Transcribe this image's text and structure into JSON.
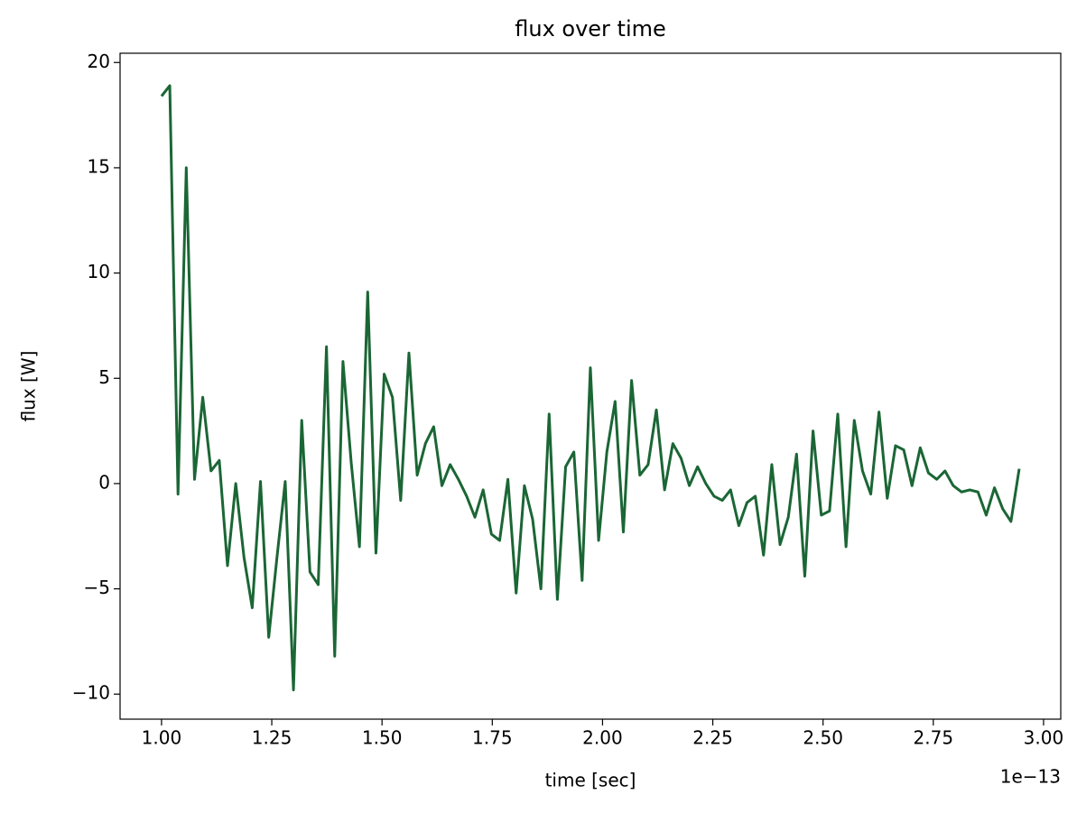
{
  "chart_data": {
    "type": "line",
    "title": "flux over time",
    "x_label": "time [sec]",
    "y_label": "flux [W]",
    "x_offset_label": "1e−13",
    "x": [
      1.0,
      1.0187,
      1.0374,
      1.0561,
      1.0748,
      1.0935,
      1.1122,
      1.1309,
      1.1496,
      1.1683,
      1.187,
      1.2057,
      1.2244,
      1.2431,
      1.2618,
      1.2805,
      1.2992,
      1.3179,
      1.3366,
      1.3553,
      1.374,
      1.3927,
      1.4114,
      1.4301,
      1.4488,
      1.4675,
      1.4862,
      1.5049,
      1.5236,
      1.5423,
      1.561,
      1.5797,
      1.5984,
      1.6171,
      1.6358,
      1.6545,
      1.6732,
      1.6919,
      1.7106,
      1.7293,
      1.748,
      1.7667,
      1.7854,
      1.8041,
      1.8228,
      1.8415,
      1.8602,
      1.8789,
      1.8976,
      1.9163,
      1.935,
      1.9537,
      1.9724,
      1.9911,
      2.0098,
      2.0285,
      2.0472,
      2.0659,
      2.0846,
      2.1033,
      2.122,
      2.1407,
      2.1594,
      2.1781,
      2.1968,
      2.2155,
      2.2342,
      2.2529,
      2.2716,
      2.2903,
      2.309,
      2.3277,
      2.3464,
      2.3651,
      2.3838,
      2.4025,
      2.4212,
      2.4399,
      2.4586,
      2.4773,
      2.496,
      2.5147,
      2.5334,
      2.5521,
      2.5708,
      2.5895,
      2.6082,
      2.6269,
      2.6456,
      2.6643,
      2.683,
      2.7017,
      2.7204,
      2.7391,
      2.7578,
      2.7765,
      2.7952,
      2.8139,
      2.8326,
      2.8513,
      2.87,
      2.8887,
      2.9074,
      2.9261,
      2.9448
    ],
    "series": [
      {
        "color": "#1b6635",
        "values": [
          18.4,
          18.9,
          -0.5,
          15.0,
          0.2,
          4.1,
          0.6,
          1.1,
          -3.9,
          0.0,
          -3.5,
          -5.9,
          0.1,
          -7.3,
          -3.5,
          0.1,
          -9.8,
          3.0,
          -4.2,
          -4.8,
          6.5,
          -8.2,
          5.8,
          1.0,
          -3.0,
          9.1,
          -3.3,
          5.2,
          4.1,
          -0.8,
          6.2,
          0.4,
          1.9,
          2.7,
          -0.1,
          0.9,
          0.2,
          -0.6,
          -1.6,
          -0.3,
          -2.4,
          -2.7,
          0.2,
          -5.2,
          -0.1,
          -1.7,
          -5.0,
          3.3,
          -5.5,
          0.8,
          1.5,
          -4.6,
          5.5,
          -2.7,
          1.5,
          3.9,
          -2.3,
          4.9,
          0.4,
          0.9,
          3.5,
          -0.3,
          1.9,
          1.2,
          -0.1,
          0.8,
          0.0,
          -0.6,
          -0.8,
          -0.3,
          -2.0,
          -0.9,
          -0.6,
          -3.4,
          0.9,
          -2.9,
          -1.6,
          1.4,
          -4.4,
          2.5,
          -1.5,
          -1.3,
          3.3,
          -3.0,
          3.0,
          0.6,
          -0.5,
          3.4,
          -0.7,
          1.8,
          1.6,
          -0.1,
          1.7,
          0.5,
          0.2,
          0.6,
          -0.1,
          -0.4,
          -0.3,
          -0.4,
          -1.5,
          -0.2,
          -1.2,
          -1.8,
          0.7
        ]
      }
    ],
    "xlim": [
      0.906,
      3.039
    ],
    "ylim": [
      -11.19,
      20.44
    ],
    "xticks": [
      {
        "value": 1.0,
        "label": "1.00"
      },
      {
        "value": 1.25,
        "label": "1.25"
      },
      {
        "value": 1.5,
        "label": "1.50"
      },
      {
        "value": 1.75,
        "label": "1.75"
      },
      {
        "value": 2.0,
        "label": "2.00"
      },
      {
        "value": 2.25,
        "label": "2.25"
      },
      {
        "value": 2.5,
        "label": "2.50"
      },
      {
        "value": 2.75,
        "label": "2.75"
      },
      {
        "value": 3.0,
        "label": "3.00"
      }
    ],
    "yticks": [
      {
        "value": -10,
        "label": "−10"
      },
      {
        "value": -5,
        "label": "−5"
      },
      0,
      5,
      10,
      15,
      20
    ],
    "grid": false
  }
}
